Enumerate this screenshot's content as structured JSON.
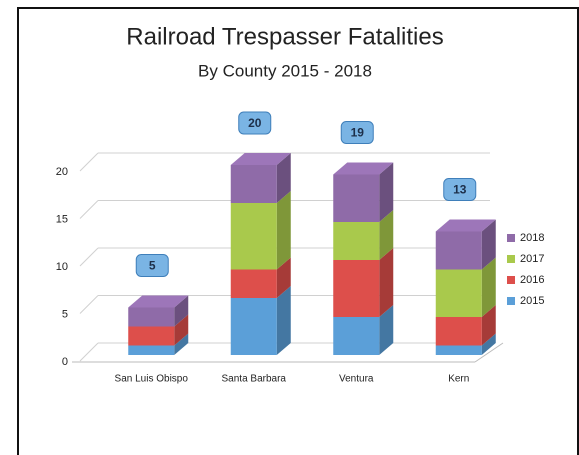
{
  "chart_data": {
    "type": "bar",
    "stacked": true,
    "title": "Railroad Trespasser Fatalities",
    "subtitle": "By County 2015 - 2018",
    "categories": [
      "San Luis Obispo",
      "Santa Barbara",
      "Ventura",
      "Kern"
    ],
    "series": [
      {
        "name": "2015",
        "color": "#5b9fd8",
        "values": [
          1,
          6,
          4,
          1
        ]
      },
      {
        "name": "2016",
        "color": "#dd4f4b",
        "values": [
          2,
          3,
          6,
          3
        ]
      },
      {
        "name": "2017",
        "color": "#a9c94c",
        "values": [
          0,
          7,
          4,
          5
        ]
      },
      {
        "name": "2018",
        "color": "#8f6ba8",
        "values": [
          2,
          4,
          5,
          4
        ]
      }
    ],
    "totals": [
      5,
      20,
      19,
      13
    ],
    "ylim": [
      0,
      20
    ],
    "yticks": [
      0,
      5,
      10,
      15,
      20
    ],
    "grid": true,
    "legend": "right"
  }
}
